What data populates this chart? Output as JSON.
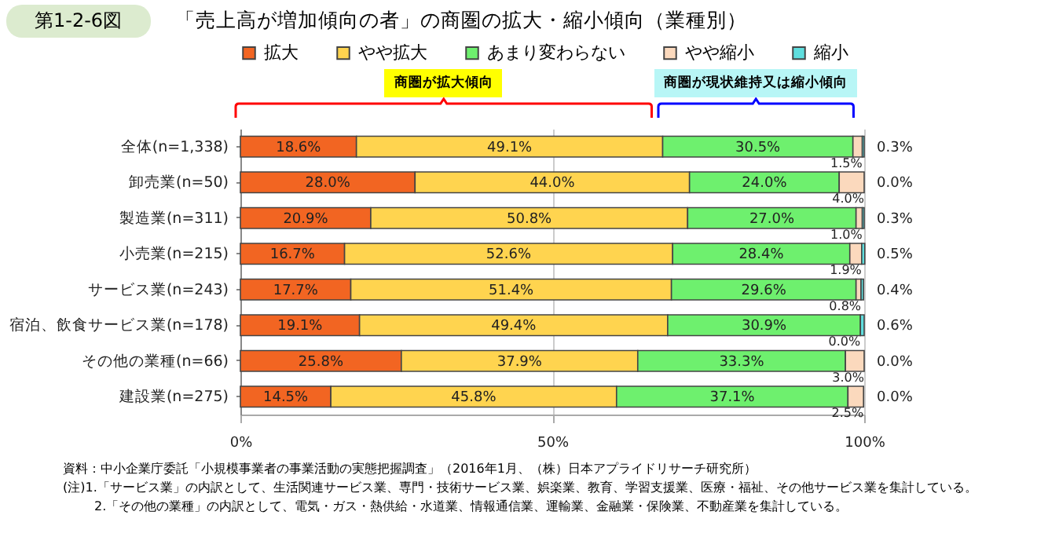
{
  "chart_data": {
    "type": "bar",
    "orientation": "horizontal",
    "stacked": true,
    "title": "「売上高が増加傾向の者」の商圏の拡大・縮小傾向（業種別）",
    "categories": [
      "全体(n=1,338)",
      "卸売業(n=50)",
      "製造業(n=311)",
      "小売業(n=215)",
      "サービス業(n=243)",
      "宿泊、飲食サービス業(n=178)",
      "その他の業種(n=66)",
      "建設業(n=275)"
    ],
    "series": [
      {
        "name": "拡大",
        "color": "#f26522",
        "values": [
          18.6,
          28.0,
          20.9,
          16.7,
          17.7,
          19.1,
          25.8,
          14.5
        ],
        "value_labels": [
          "18.6%",
          "28.0%",
          "20.9%",
          "16.7%",
          "17.7%",
          "19.1%",
          "25.8%",
          "14.5%"
        ]
      },
      {
        "name": "やや拡大",
        "color": "#ffd44f",
        "values": [
          49.1,
          44.0,
          50.8,
          52.6,
          51.4,
          49.4,
          37.9,
          45.8
        ],
        "value_labels": [
          "49.1%",
          "44.0%",
          "50.8%",
          "52.6%",
          "51.4%",
          "49.4%",
          "37.9%",
          "45.8%"
        ]
      },
      {
        "name": "あまり変わらない",
        "color": "#6ef06e",
        "values": [
          30.5,
          24.0,
          27.0,
          28.4,
          29.6,
          30.9,
          33.3,
          37.1
        ],
        "value_labels": [
          "30.5%",
          "24.0%",
          "27.0%",
          "28.4%",
          "29.6%",
          "30.9%",
          "33.3%",
          "37.1%"
        ]
      },
      {
        "name": "やや縮小",
        "color": "#fbd9bd",
        "values": [
          1.5,
          4.0,
          1.0,
          1.9,
          0.8,
          0.0,
          3.0,
          2.5
        ],
        "value_labels": [
          "1.5%",
          "4.0%",
          "1.0%",
          "1.9%",
          "0.8%",
          "0.0%",
          "3.0%",
          "2.5%"
        ]
      },
      {
        "name": "縮小",
        "color": "#5fdede",
        "values": [
          0.3,
          0.0,
          0.3,
          0.5,
          0.4,
          0.6,
          0.0,
          0.0
        ],
        "value_labels": [
          "0.3%",
          "0.0%",
          "0.3%",
          "0.5%",
          "0.4%",
          "0.6%",
          "0.0%",
          "0.0%"
        ]
      }
    ],
    "xlim": [
      0,
      100
    ],
    "xticks": [
      {
        "value": 0,
        "label": "0%"
      },
      {
        "value": 50,
        "label": "50%"
      },
      {
        "value": 100,
        "label": "100%"
      }
    ],
    "grid": "x",
    "legend": "top",
    "annotations": [
      "第1-2-6図",
      "商圏が拡大傾向",
      "商圏が現状維持又は縮小傾向",
      "資料：中小企業庁委託「小規模事業者の事業活動の実態把握調査」（2016年1月、（株）日本アプライドリサーチ研究所）",
      "(注)1.「サービス業」の内訳として、生活関連サービス業、専門・技術サービス業、娯楽業、教育、学習支援業、医療・福祉、その他サービス業を集計している。",
      "2.「その他の業種」の内訳として、電気・ガス・熱供給・水道業、情報通信業、運輸業、金融業・保険業、不動産業を集計している。"
    ]
  }
}
